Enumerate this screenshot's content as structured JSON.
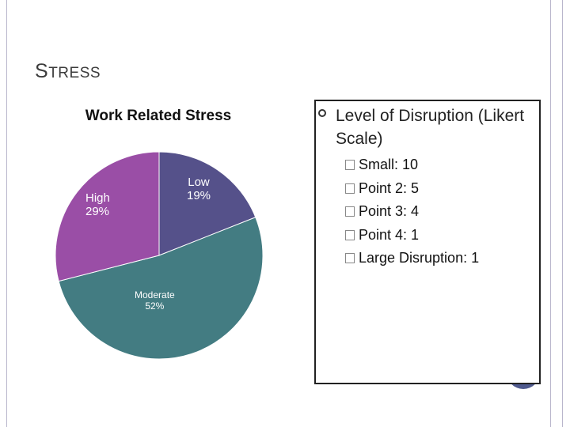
{
  "slide": {
    "title": "Stress",
    "right_bullet": "Level of Disruption (Likert Scale)",
    "sub_items": [
      "Small: 10",
      "Point 2: 5",
      "Point 3: 4",
      "Point 4: 1",
      "Large Disruption: 1"
    ],
    "sub_bullet_icon": "checkbox-square-icon",
    "bullet_icon": "circle-bullet-icon"
  },
  "chart_data": {
    "type": "pie",
    "title": "Work Related Stress",
    "slices": [
      {
        "label": "Low",
        "value": 19,
        "pct_label": "19%",
        "color": "#55518a"
      },
      {
        "label": "Moderate",
        "value": 52,
        "pct_label": "52%",
        "color": "#437c82"
      },
      {
        "label": "High",
        "value": 29,
        "pct_label": "29%",
        "color": "#9a4ea6"
      }
    ],
    "legend": "none",
    "labels_inside": true
  }
}
